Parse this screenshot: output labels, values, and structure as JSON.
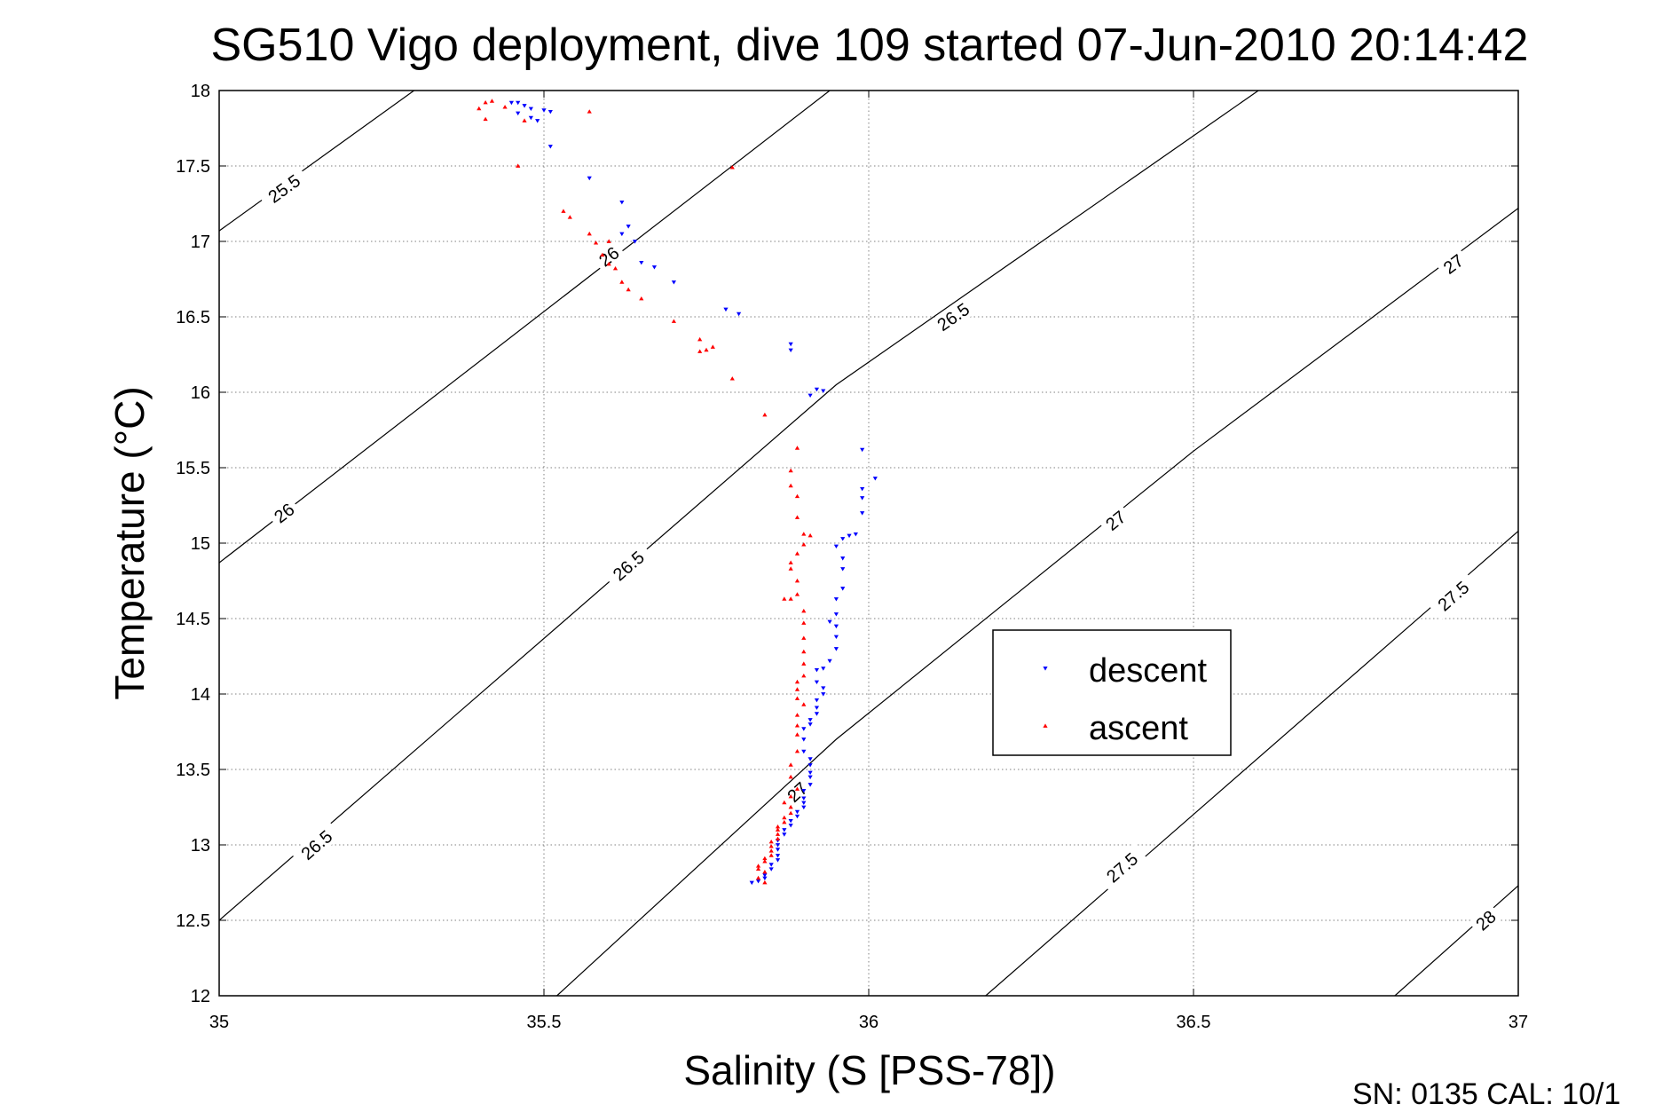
{
  "chart_data": {
    "type": "scatter",
    "title": "SG510 Vigo deployment, dive 109 started 07-Jun-2010 20:14:42",
    "xlabel": "Salinity (S [PSS-78])",
    "ylabel": "Temperature (°C)",
    "xlim": [
      35,
      37
    ],
    "ylim": [
      12,
      18
    ],
    "xticks": [
      "35",
      "35.5",
      "36",
      "36.5",
      "37"
    ],
    "yticks": [
      "12",
      "12.5",
      "13",
      "13.5",
      "14",
      "14.5",
      "15",
      "15.5",
      "16",
      "16.5",
      "17",
      "17.5",
      "18"
    ],
    "grid": true,
    "legend_position": "center-right",
    "footer": "SN: 0135  CAL: 10/1",
    "colors": {
      "descent": "#0000ff",
      "ascent": "#ff0000",
      "contour": "#000000",
      "grid": "#808080"
    },
    "density_contours": [
      {
        "level": "25.5",
        "points": [
          [
            35,
            17.07
          ],
          [
            35.3,
            18.0
          ]
        ],
        "labels": [
          [
            35.1,
            17.35
          ]
        ]
      },
      {
        "level": "26",
        "points": [
          [
            35,
            14.87
          ],
          [
            35.94,
            18.0
          ]
        ],
        "labels": [
          [
            35.1,
            15.2
          ],
          [
            35.6,
            16.9
          ]
        ]
      },
      {
        "level": "26.5",
        "points": [
          [
            35,
            12.5
          ],
          [
            35.95,
            16.05
          ],
          [
            36.6,
            18.0
          ]
        ],
        "labels": [
          [
            35.15,
            13.0
          ],
          [
            35.63,
            14.85
          ],
          [
            36.13,
            16.5
          ]
        ]
      },
      {
        "level": "27",
        "points": [
          [
            35.52,
            12.0
          ],
          [
            35.95,
            13.7
          ],
          [
            36.5,
            15.61
          ],
          [
            37,
            17.22
          ]
        ],
        "labels": [
          [
            35.89,
            13.35
          ],
          [
            36.38,
            15.15
          ],
          [
            36.9,
            16.85
          ]
        ]
      },
      {
        "level": "27.5",
        "points": [
          [
            36.18,
            12.0
          ],
          [
            37,
            15.08
          ]
        ],
        "labels": [
          [
            36.39,
            12.85
          ],
          [
            36.9,
            14.65
          ]
        ]
      },
      {
        "level": "28",
        "points": [
          [
            36.81,
            12.0
          ],
          [
            37,
            12.73
          ]
        ],
        "labels": [
          [
            36.95,
            12.5
          ]
        ]
      }
    ],
    "series": [
      {
        "name": "descent",
        "marker": "triangle-down",
        "points": [
          [
            35.45,
            17.92
          ],
          [
            35.46,
            17.92
          ],
          [
            35.47,
            17.9
          ],
          [
            35.48,
            17.88
          ],
          [
            35.5,
            17.87
          ],
          [
            35.51,
            17.86
          ],
          [
            35.48,
            17.82
          ],
          [
            35.46,
            17.85
          ],
          [
            35.49,
            17.8
          ],
          [
            35.51,
            17.63
          ],
          [
            35.57,
            17.42
          ],
          [
            35.62,
            17.26
          ],
          [
            35.63,
            17.1
          ],
          [
            35.62,
            17.05
          ],
          [
            35.64,
            17.0
          ],
          [
            35.65,
            16.86
          ],
          [
            35.67,
            16.83
          ],
          [
            35.7,
            16.73
          ],
          [
            35.78,
            16.55
          ],
          [
            35.8,
            16.52
          ],
          [
            35.88,
            16.32
          ],
          [
            35.88,
            16.28
          ],
          [
            35.92,
            16.02
          ],
          [
            35.93,
            16.01
          ],
          [
            35.91,
            15.98
          ],
          [
            35.99,
            15.62
          ],
          [
            36.01,
            15.43
          ],
          [
            35.99,
            15.36
          ],
          [
            35.99,
            15.3
          ],
          [
            35.99,
            15.2
          ],
          [
            35.98,
            15.06
          ],
          [
            35.97,
            15.05
          ],
          [
            35.96,
            15.03
          ],
          [
            35.95,
            14.98
          ],
          [
            35.96,
            14.9
          ],
          [
            35.96,
            14.83
          ],
          [
            35.96,
            14.7
          ],
          [
            35.95,
            14.63
          ],
          [
            35.95,
            14.53
          ],
          [
            35.94,
            14.48
          ],
          [
            35.95,
            14.45
          ],
          [
            35.95,
            14.38
          ],
          [
            35.95,
            14.3
          ],
          [
            35.94,
            14.22
          ],
          [
            35.93,
            14.17
          ],
          [
            35.92,
            14.16
          ],
          [
            35.92,
            14.08
          ],
          [
            35.93,
            14.04
          ],
          [
            35.93,
            14.0
          ],
          [
            35.92,
            13.96
          ],
          [
            35.92,
            13.91
          ],
          [
            35.92,
            13.87
          ],
          [
            35.91,
            13.83
          ],
          [
            35.91,
            13.8
          ],
          [
            35.9,
            13.77
          ],
          [
            35.9,
            13.7
          ],
          [
            35.9,
            13.62
          ],
          [
            35.91,
            13.57
          ],
          [
            35.91,
            13.53
          ],
          [
            35.91,
            13.48
          ],
          [
            35.91,
            13.45
          ],
          [
            35.91,
            13.4
          ],
          [
            35.9,
            13.36
          ],
          [
            35.9,
            13.31
          ],
          [
            35.9,
            13.28
          ],
          [
            35.9,
            13.25
          ],
          [
            35.89,
            13.22
          ],
          [
            35.89,
            13.19
          ],
          [
            35.88,
            13.16
          ],
          [
            35.88,
            13.13
          ],
          [
            35.87,
            13.1
          ],
          [
            35.87,
            13.07
          ],
          [
            35.86,
            13.03
          ],
          [
            35.86,
            13.0
          ],
          [
            35.86,
            12.97
          ],
          [
            35.86,
            12.93
          ],
          [
            35.86,
            12.9
          ],
          [
            35.85,
            12.87
          ],
          [
            35.85,
            12.84
          ],
          [
            35.84,
            12.8
          ],
          [
            35.84,
            12.78
          ],
          [
            35.83,
            12.76
          ],
          [
            35.82,
            12.75
          ]
        ]
      },
      {
        "name": "ascent",
        "marker": "triangle-up",
        "points": [
          [
            35.41,
            17.92
          ],
          [
            35.42,
            17.93
          ],
          [
            35.4,
            17.88
          ],
          [
            35.41,
            17.81
          ],
          [
            35.44,
            17.89
          ],
          [
            35.47,
            17.8
          ],
          [
            35.46,
            17.5
          ],
          [
            35.57,
            17.86
          ],
          [
            35.79,
            17.49
          ],
          [
            35.53,
            17.2
          ],
          [
            35.54,
            17.16
          ],
          [
            35.57,
            17.05
          ],
          [
            35.58,
            16.99
          ],
          [
            35.6,
            17.0
          ],
          [
            35.59,
            16.91
          ],
          [
            35.6,
            16.85
          ],
          [
            35.61,
            16.82
          ],
          [
            35.62,
            16.73
          ],
          [
            35.63,
            16.68
          ],
          [
            35.65,
            16.62
          ],
          [
            35.7,
            16.47
          ],
          [
            35.74,
            16.35
          ],
          [
            35.75,
            16.28
          ],
          [
            35.76,
            16.3
          ],
          [
            35.74,
            16.27
          ],
          [
            35.79,
            16.09
          ],
          [
            35.84,
            15.85
          ],
          [
            35.89,
            15.63
          ],
          [
            35.88,
            15.48
          ],
          [
            35.88,
            15.38
          ],
          [
            35.89,
            15.31
          ],
          [
            35.89,
            15.17
          ],
          [
            35.9,
            15.06
          ],
          [
            35.91,
            15.05
          ],
          [
            35.9,
            14.99
          ],
          [
            35.89,
            14.93
          ],
          [
            35.88,
            14.87
          ],
          [
            35.88,
            14.83
          ],
          [
            35.89,
            14.75
          ],
          [
            35.89,
            14.66
          ],
          [
            35.88,
            14.63
          ],
          [
            35.87,
            14.63
          ],
          [
            35.9,
            14.55
          ],
          [
            35.9,
            14.47
          ],
          [
            35.9,
            14.37
          ],
          [
            35.9,
            14.28
          ],
          [
            35.9,
            14.2
          ],
          [
            35.9,
            14.12
          ],
          [
            35.89,
            14.08
          ],
          [
            35.89,
            14.03
          ],
          [
            35.89,
            13.97
          ],
          [
            35.9,
            13.93
          ],
          [
            35.89,
            13.86
          ],
          [
            35.89,
            13.79
          ],
          [
            35.89,
            13.73
          ],
          [
            35.89,
            13.62
          ],
          [
            35.88,
            13.53
          ],
          [
            35.88,
            13.45
          ],
          [
            35.89,
            13.37
          ],
          [
            35.88,
            13.32
          ],
          [
            35.87,
            13.28
          ],
          [
            35.88,
            13.25
          ],
          [
            35.88,
            13.21
          ],
          [
            35.87,
            13.18
          ],
          [
            35.87,
            13.15
          ],
          [
            35.86,
            13.12
          ],
          [
            35.86,
            13.1
          ],
          [
            35.86,
            13.07
          ],
          [
            35.86,
            13.04
          ],
          [
            35.85,
            13.02
          ],
          [
            35.85,
            12.99
          ],
          [
            35.85,
            12.96
          ],
          [
            35.85,
            12.93
          ],
          [
            35.84,
            12.91
          ],
          [
            35.84,
            12.89
          ],
          [
            35.83,
            12.86
          ],
          [
            35.83,
            12.84
          ],
          [
            35.84,
            12.82
          ],
          [
            35.83,
            12.78
          ],
          [
            35.84,
            12.75
          ]
        ]
      }
    ]
  }
}
